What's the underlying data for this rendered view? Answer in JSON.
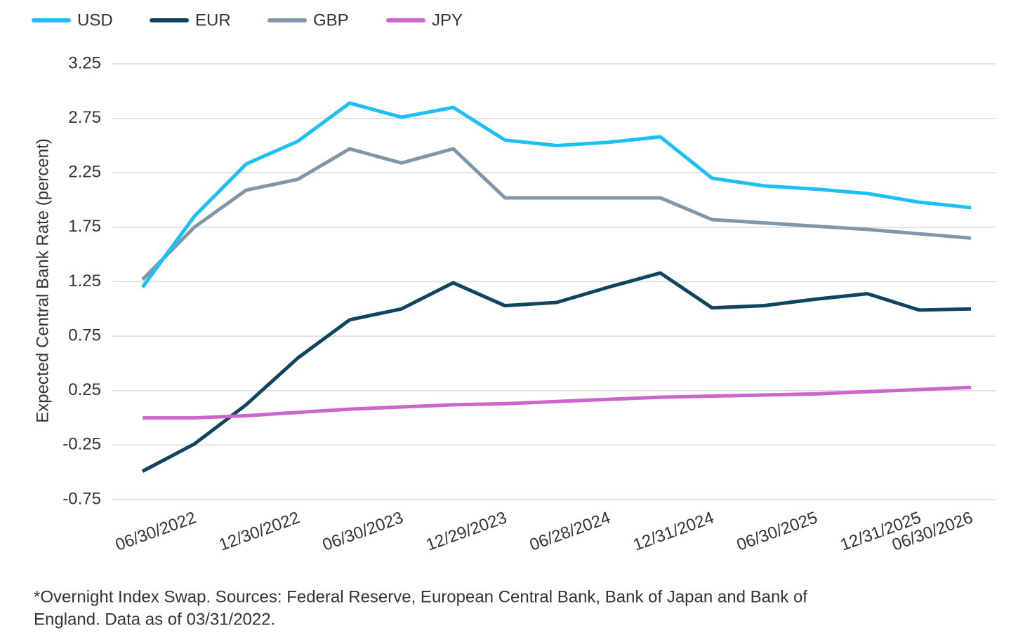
{
  "chart_data": {
    "type": "line",
    "y_label": "Expected Central Bank Rate (percent)",
    "footnote": [
      "*Overnight Index Swap. Sources: Federal Reserve, European Central Bank, Bank of Japan and Bank of",
      "England. Data as of 03/31/2022."
    ],
    "categories": [
      null,
      "06/30/2022",
      null,
      "12/30/2022",
      null,
      "06/30/2023",
      null,
      "12/29/2023",
      null,
      "06/28/2024",
      null,
      "12/31/2024",
      null,
      "06/30/2025",
      null,
      "12/31/2025",
      "06/30/2026"
    ],
    "series": [
      {
        "name": "USD",
        "color": "#1cc0f4",
        "values": [
          1.2,
          1.85,
          2.33,
          2.54,
          2.89,
          2.76,
          2.85,
          2.55,
          2.5,
          2.53,
          2.58,
          2.2,
          2.13,
          2.1,
          2.06,
          1.98,
          1.93
        ]
      },
      {
        "name": "EUR",
        "color": "#0f4560",
        "values": [
          -0.49,
          -0.24,
          0.12,
          0.55,
          0.9,
          1.0,
          1.24,
          1.03,
          1.06,
          1.2,
          1.33,
          1.01,
          1.03,
          1.09,
          1.14,
          0.99,
          1.0
        ]
      },
      {
        "name": "GBP",
        "color": "#8097aa",
        "values": [
          1.27,
          1.75,
          2.09,
          2.19,
          2.47,
          2.34,
          2.47,
          2.02,
          2.02,
          2.02,
          2.02,
          1.82,
          1.79,
          1.76,
          1.73,
          1.69,
          1.65
        ]
      },
      {
        "name": "JPY",
        "color": "#cc66cc",
        "values": [
          0.0,
          0.0,
          0.02,
          0.05,
          0.08,
          0.1,
          0.12,
          0.13,
          0.15,
          0.17,
          0.19,
          0.2,
          0.21,
          0.22,
          0.24,
          0.26,
          0.28
        ]
      }
    ],
    "ylim": [
      -0.75,
      3.25
    ],
    "yticks": [
      -0.75,
      -0.25,
      0.25,
      0.75,
      1.25,
      1.75,
      2.25,
      2.75,
      3.25
    ],
    "grid": true
  }
}
